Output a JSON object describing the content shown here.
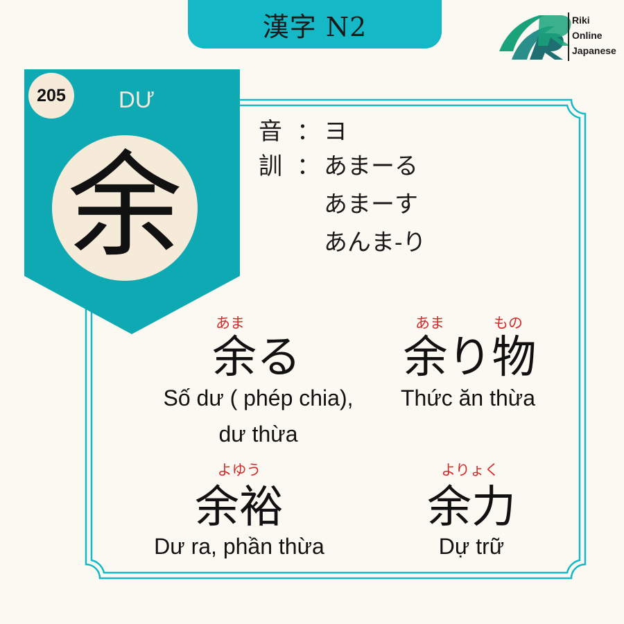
{
  "header": {
    "title": "漢字 N2"
  },
  "logo": {
    "line1": "Riki",
    "line2": "Online",
    "line3": "Japanese"
  },
  "card": {
    "number": "205",
    "han_viet": "DƯ",
    "kanji": "余"
  },
  "readings": {
    "on_label": "音",
    "kun_label": "訓",
    "colon": "：",
    "on": "ヨ",
    "kun": [
      "あまーる",
      "あまーす",
      "あんま-り"
    ]
  },
  "vocab": [
    {
      "word": "余る",
      "furigana": [
        "あま"
      ],
      "meaning_lines": [
        "Số dư ( phép chia),",
        "dư thừa"
      ]
    },
    {
      "word": "余り物",
      "furigana": [
        "あま",
        "もの"
      ],
      "meaning_lines": [
        "Thức ăn thừa"
      ]
    },
    {
      "word": "余裕",
      "furigana": [
        "よゆう"
      ],
      "meaning_lines": [
        "Dư ra, phần thừa"
      ]
    },
    {
      "word": "余力",
      "furigana": [
        "よりょく"
      ],
      "meaning_lines": [
        "Dự trữ"
      ]
    }
  ],
  "colors": {
    "teal": "#14b8c7",
    "banner_teal": "#0ea9b3",
    "cream": "#f6ead8",
    "background": "#fcf9f3",
    "furigana_red": "#d42b2b",
    "logo_green": "#1aa37a",
    "logo_teal": "#2a8f8a"
  }
}
